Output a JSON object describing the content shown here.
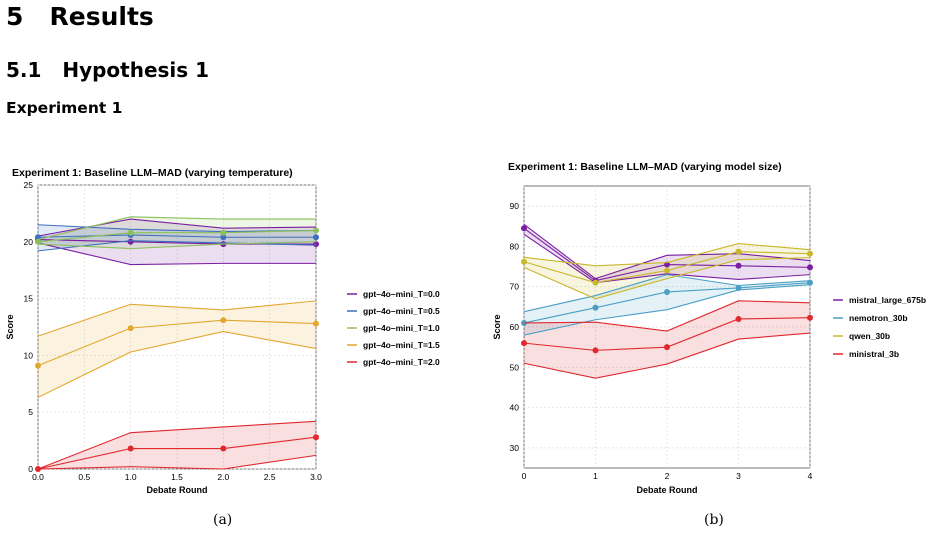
{
  "section": {
    "number": "5",
    "title": "Results"
  },
  "subsection": {
    "number": "5.1",
    "title": "Hypothesis 1"
  },
  "subsubsection": {
    "title": "Experiment 1"
  },
  "captions": {
    "a": "(a)",
    "b": "(b)"
  },
  "chart_data": [
    {
      "type": "line",
      "title": "Experiment 1: Baseline LLM–MAD (varying temperature)",
      "xlabel": "Debate Round",
      "ylabel": "Score",
      "xlim": [
        0,
        3
      ],
      "ylim": [
        0,
        25
      ],
      "xticks": [
        "0.0",
        "0.5",
        "1.0",
        "1.5",
        "2.0",
        "2.5",
        "3.0"
      ],
      "yticks": [
        "0",
        "5",
        "10",
        "15",
        "20",
        "25"
      ],
      "grid": true,
      "legend_position": "right",
      "bands": "shaded interval around each series",
      "series": [
        {
          "name": "gpt–4o–mini_T=0.0",
          "color": "#7b1fa2",
          "x": [
            0,
            1,
            2,
            3
          ],
          "values": [
            20.2,
            20.0,
            19.8,
            19.8
          ],
          "upper": [
            20.5,
            22.0,
            21.2,
            21.3
          ],
          "lower": [
            19.9,
            18.0,
            18.1,
            18.1
          ]
        },
        {
          "name": "gpt–4o–mini_T=0.5",
          "color": "#3f6fbf",
          "x": [
            0,
            1,
            2,
            3
          ],
          "values": [
            20.4,
            20.6,
            20.4,
            20.4
          ],
          "upper": [
            21.5,
            21.1,
            20.9,
            21.0
          ],
          "lower": [
            19.2,
            20.1,
            19.9,
            19.7
          ]
        },
        {
          "name": "gpt–4o–mini_T=1.0",
          "color": "#8cc05a",
          "x": [
            0,
            1,
            2,
            3
          ],
          "values": [
            20.0,
            20.8,
            20.8,
            21.0
          ],
          "upper": [
            20.2,
            22.2,
            22.0,
            22.0
          ],
          "lower": [
            19.8,
            19.4,
            19.8,
            20.0
          ]
        },
        {
          "name": "gpt–4o–mini_T=1.5",
          "color": "#e3a72f",
          "x": [
            0,
            1,
            2,
            3
          ],
          "values": [
            9.1,
            12.4,
            13.1,
            12.8
          ],
          "upper": [
            11.7,
            14.5,
            14.0,
            14.8
          ],
          "lower": [
            6.3,
            10.3,
            12.1,
            10.6
          ]
        },
        {
          "name": "gpt–4o–mini_T=2.0",
          "color": "#e0282e",
          "x": [
            0,
            1,
            2,
            3
          ],
          "values": [
            0.0,
            1.8,
            1.8,
            2.8
          ],
          "upper": [
            0.0,
            3.2,
            3.7,
            4.2
          ],
          "lower": [
            0.0,
            0.2,
            0.0,
            1.2
          ]
        }
      ]
    },
    {
      "type": "line",
      "title": "Experiment 1: Baseline LLM–MAD (varying model size)",
      "xlabel": "Debate Round",
      "ylabel": "Score",
      "xlim": [
        0,
        4
      ],
      "ylim": [
        25,
        95
      ],
      "xticks": [
        "0",
        "1",
        "2",
        "3",
        "4"
      ],
      "yticks": [
        "30",
        "40",
        "50",
        "60",
        "70",
        "80",
        "90"
      ],
      "grid": true,
      "legend_position": "right",
      "bands": "shaded interval around each series",
      "series": [
        {
          "name": "mistral_large_675b",
          "color": "#7b1fa2",
          "x": [
            0,
            1,
            2,
            3,
            4
          ],
          "values": [
            84.5,
            71.5,
            75.5,
            75.2,
            74.8
          ],
          "upper": [
            85.5,
            72.0,
            77.8,
            78.2,
            76.5
          ],
          "lower": [
            83.0,
            71.0,
            73.2,
            71.8,
            73.0
          ]
        },
        {
          "name": "nemotron_30b",
          "color": "#4a9fc4",
          "x": [
            0,
            1,
            2,
            3,
            4
          ],
          "values": [
            61.0,
            64.8,
            68.7,
            69.7,
            71.0
          ],
          "upper": [
            63.8,
            67.8,
            73.0,
            70.3,
            71.5
          ],
          "lower": [
            58.0,
            61.8,
            64.3,
            69.2,
            70.5
          ]
        },
        {
          "name": "qwen_30b",
          "color": "#c9b82a",
          "x": [
            0,
            1,
            2,
            3,
            4
          ],
          "values": [
            76.2,
            71.0,
            74.0,
            78.7,
            78.2
          ],
          "upper": [
            77.3,
            75.2,
            76.0,
            80.7,
            79.2
          ],
          "lower": [
            74.8,
            67.0,
            72.0,
            76.7,
            77.2
          ]
        },
        {
          "name": "ministral_3b",
          "color": "#e0282e",
          "x": [
            0,
            1,
            2,
            3,
            4
          ],
          "values": [
            56.0,
            54.2,
            55.0,
            62.0,
            62.3
          ],
          "upper": [
            61.0,
            61.2,
            59.0,
            66.5,
            66.0
          ],
          "lower": [
            51.0,
            47.3,
            50.8,
            57.0,
            58.5
          ]
        }
      ]
    }
  ]
}
